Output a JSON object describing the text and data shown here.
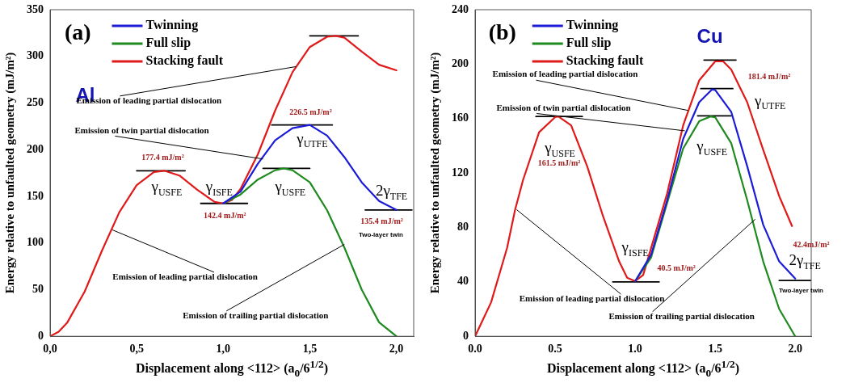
{
  "chart_data": [
    {
      "type": "line",
      "title": "(a)",
      "subtitle": "Al",
      "xlabel": "Displacement along <112> (a$_{0}$/6$^{1/2}$)",
      "ylabel": "Energy relative to unfaulted geometry (mJ/m²)",
      "xlim": [
        0,
        2.1
      ],
      "xticks": [
        {
          "value": 0,
          "label": "0,0"
        },
        {
          "value": 0.5,
          "label": "0,5"
        },
        {
          "value": 1,
          "label": "1,0"
        },
        {
          "value": 1.5,
          "label": "1,5"
        },
        {
          "value": 2,
          "label": "2,0"
        }
      ],
      "ylim": [
        0,
        350
      ],
      "yticks": [
        0,
        50,
        100,
        150,
        200,
        250,
        300,
        350
      ],
      "grid": false,
      "legend": "top left",
      "marker": "none",
      "line_style": "solid",
      "series": [
        {
          "name": "Twinning",
          "color": "#1c1cd8",
          "x": [
            1.0,
            1.1,
            1.2,
            1.3,
            1.4,
            1.5,
            1.6,
            1.7,
            1.8,
            1.9,
            2.0
          ],
          "values": [
            142.4,
            155,
            185,
            210,
            223,
            226.5,
            215,
            192,
            165,
            145,
            135.4
          ]
        },
        {
          "name": "Full slip",
          "color": "#1f8a1f",
          "x": [
            1.0,
            1.1,
            1.2,
            1.3,
            1.35,
            1.4,
            1.5,
            1.6,
            1.7,
            1.8,
            1.9,
            2.0
          ],
          "values": [
            142.4,
            152,
            168,
            178,
            180,
            178,
            165,
            135,
            95,
            50,
            15,
            0
          ]
        },
        {
          "name": "Stacking fault",
          "color": "#e01a1a",
          "x": [
            0,
            0.05,
            0.1,
            0.2,
            0.3,
            0.4,
            0.5,
            0.6,
            0.66,
            0.75,
            0.85,
            0.95,
            1.0,
            1.05,
            1.1,
            1.2,
            1.3,
            1.4,
            1.5,
            1.6,
            1.65,
            1.7,
            1.8,
            1.9,
            2.0
          ],
          "values": [
            0,
            5,
            15,
            48,
            92,
            133,
            162,
            176,
            177.4,
            172,
            157,
            144,
            142.4,
            146,
            158,
            195,
            242,
            283,
            310,
            321,
            322,
            320,
            305,
            291,
            285
          ]
        },
        {
          "color": "#000000",
          "x": [
            0.5,
            0.78
          ],
          "values": [
            177.4,
            177.4
          ]
        },
        {
          "color": "#000000",
          "x": [
            0.87,
            1.14
          ],
          "values": [
            142.4,
            142.4
          ]
        },
        {
          "color": "#000000",
          "x": [
            1.23,
            1.5
          ],
          "values": [
            180,
            180
          ]
        },
        {
          "color": "#000000",
          "x": [
            1.28,
            1.63
          ],
          "values": [
            226.5,
            226.5
          ]
        },
        {
          "color": "#000000",
          "x": [
            1.5,
            1.78
          ],
          "values": [
            322,
            322
          ]
        },
        {
          "color": "#000000",
          "x": [
            1.82,
            2.09
          ],
          "values": [
            135.4,
            135.4
          ]
        }
      ],
      "annotations": [
        {
          "text": "177.4 mJ/m²",
          "x": 0.66,
          "y": 177.4
        },
        {
          "text": "γ$_{USFE}$",
          "x": 0.66,
          "y": 177.4
        },
        {
          "text": "γ$_{ISFE}$",
          "x": 1.0,
          "y": 142.4
        },
        {
          "text": "142.4 mJ/m²",
          "x": 1.0,
          "y": 142.4
        },
        {
          "text": "γ$_{USFE}$",
          "x": 1.35,
          "y": 180
        },
        {
          "text": "226.5 mJ/m²",
          "x": 1.5,
          "y": 226.5
        },
        {
          "text": "γ$_{UTFE}$",
          "x": 1.5,
          "y": 226.5
        },
        {
          "text": "2γ$_{TFE}$",
          "x": 2.0,
          "y": 135.4
        },
        {
          "text": "135.4 mJ/m²",
          "x": 2.0,
          "y": 135.4
        },
        "Two-layer twin",
        {
          "text": "Emission of leading partial dislocation",
          "x": 1.42,
          "y": 289
        },
        {
          "text": "Emission of twin partial dislocation",
          "x": 1.23,
          "y": 190
        },
        {
          "text": "Emission of leading partial dislocation",
          "x": 0.36,
          "y": 114
        },
        {
          "text": "Emission of trailing partial dislocation",
          "x": 1.7,
          "y": 98.5
        }
      ]
    },
    {
      "type": "line",
      "title": "(b)",
      "subtitle": "Cu",
      "xlabel": "Displacement along <112> (a$_{0}$/6$^{1/2}$)",
      "ylabel": "Energy relative to unfaulted geometry (mJ/m²)",
      "xlim": [
        0,
        2.1
      ],
      "xticks": [
        {
          "value": 0,
          "label": "0.0"
        },
        {
          "value": 0.5,
          "label": "0.5"
        },
        {
          "value": 1,
          "label": "1.0"
        },
        {
          "value": 1.5,
          "label": "1.5"
        },
        {
          "value": 2,
          "label": "2.0"
        }
      ],
      "ylim": [
        0,
        240
      ],
      "yticks": [
        0,
        40,
        80,
        120,
        160,
        200,
        240
      ],
      "grid": false,
      "legend": "top left",
      "marker": "none",
      "line_style": "solid",
      "series": [
        {
          "name": "Twinning",
          "color": "#1c1cd8",
          "x": [
            1.0,
            1.1,
            1.2,
            1.3,
            1.4,
            1.48,
            1.5,
            1.6,
            1.7,
            1.8,
            1.9,
            2.0
          ],
          "values": [
            40.5,
            60,
            100,
            145,
            172,
            181.4,
            181,
            165,
            125,
            82,
            55,
            42.4
          ]
        },
        {
          "name": "Full slip",
          "color": "#1f8a1f",
          "x": [
            1.0,
            1.1,
            1.2,
            1.3,
            1.4,
            1.47,
            1.5,
            1.6,
            1.7,
            1.8,
            1.9,
            2.0
          ],
          "values": [
            40.5,
            58,
            98,
            138,
            158,
            161.5,
            161,
            142,
            100,
            55,
            20,
            0
          ]
        },
        {
          "name": "Stacking fault",
          "color": "#e01a1a",
          "x": [
            0,
            0.1,
            0.2,
            0.25,
            0.3,
            0.4,
            0.5,
            0.52,
            0.6,
            0.7,
            0.8,
            0.9,
            0.95,
            1.0,
            1.05,
            1.2,
            1.3,
            1.4,
            1.5,
            1.55,
            1.6,
            1.7,
            1.8,
            1.9,
            1.98
          ],
          "values": [
            0,
            25,
            65,
            93,
            115,
            150,
            161,
            161.5,
            155,
            125,
            88,
            55,
            43,
            40.5,
            45,
            105,
            155,
            188,
            202,
            202,
            196,
            172,
            137,
            103,
            81
          ]
        },
        {
          "color": "#000000",
          "x": [
            0.38,
            0.67
          ],
          "values": [
            161.5,
            161.5
          ]
        },
        {
          "color": "#000000",
          "x": [
            0.86,
            1.15
          ],
          "values": [
            40,
            40
          ]
        },
        {
          "color": "#000000",
          "x": [
            1.43,
            1.63
          ],
          "values": [
            203,
            203
          ]
        },
        {
          "color": "#000000",
          "x": [
            1.41,
            1.61
          ],
          "values": [
            182,
            182
          ]
        },
        {
          "color": "#000000",
          "x": [
            1.39,
            1.6
          ],
          "values": [
            162,
            162
          ]
        },
        {
          "color": "#000000",
          "x": [
            1.9,
            2.1
          ],
          "values": [
            41,
            41
          ]
        }
      ],
      "annotations": [
        {
          "text": "γ$_{USFE}$",
          "x": 0.52,
          "y": 161.5
        },
        "161.5 mJ/m²",
        {
          "text": "γ$_{ISFE}$",
          "x": 1.0,
          "y": 40.5
        },
        {
          "text": "40.5 mJ/m²",
          "x": 1.0,
          "y": 40.5
        },
        {
          "text": "γ$_{USFE}$",
          "x": 1.47,
          "y": 161.5
        },
        "181.4 mJ/m²",
        {
          "text": "γ$_{UTFE}$",
          "x": 1.48,
          "y": 181.4
        },
        "42.4mJ/m²",
        {
          "text": "2γ$_{TFE}$",
          "x": 2.0,
          "y": 42.4
        },
        "Two-layer twin",
        {
          "text": "Emission of leading partial dislocation",
          "x": 1.33,
          "y": 166
        },
        {
          "text": "Emission of twin partial dislocation",
          "x": 1.31,
          "y": 151
        },
        {
          "text": "Emission of leading partial dislocation",
          "x": 0.26,
          "y": 93
        },
        {
          "text": "Emission of trailing partial dislocation",
          "x": 1.75,
          "y": 86
        }
      ]
    }
  ]
}
